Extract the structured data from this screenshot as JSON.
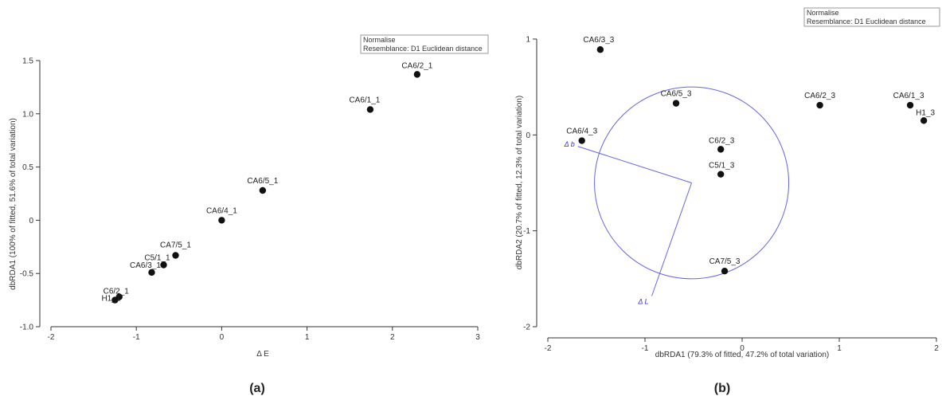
{
  "legend_lines": [
    "Normalise",
    "Resemblance: D1 Euclidean distance"
  ],
  "chart_data": [
    {
      "type": "scatter",
      "caption": "(a)",
      "xlabel": "Δ E",
      "ylabel": "dbRDA1 (100% of fitted, 51.6% of total variation)",
      "xlim": [
        -2,
        3
      ],
      "ylim": [
        -1.0,
        1.5
      ],
      "xticks": [
        -2,
        -1,
        0,
        1,
        2,
        3
      ],
      "xtick_labels": [
        "-2",
        "-1",
        "0",
        "1",
        "2",
        "3"
      ],
      "yticks": [
        -1.0,
        -0.5,
        0,
        0.5,
        1.0,
        1.5
      ],
      "ytick_labels": [
        "-1.0",
        "-0.5",
        "0",
        "0.5",
        "1.0",
        "1.5"
      ],
      "grid": false,
      "points": [
        {
          "label": "CA6/2_1",
          "x": 2.29,
          "y": 1.37
        },
        {
          "label": "CA6/1_1",
          "x": 1.74,
          "y": 1.04
        },
        {
          "label": "CA6/5_1",
          "x": 0.48,
          "y": 0.28
        },
        {
          "label": "CA6/4_1",
          "x": 0.0,
          "y": 0.0
        },
        {
          "label": "CA7/5_1",
          "x": -0.54,
          "y": -0.33
        },
        {
          "label": "C5/1_1",
          "x": -0.68,
          "y": -0.42
        },
        {
          "label": "CA6/3_1",
          "x": -0.82,
          "y": -0.49
        },
        {
          "label": "C6/2_1",
          "x": -1.2,
          "y": -0.72
        },
        {
          "label": "H1_1",
          "x": -1.25,
          "y": -0.75
        }
      ]
    },
    {
      "type": "scatter",
      "caption": "(b)",
      "xlabel": "dbRDA1 (79.3% of fitted, 47.2% of total variation)",
      "ylabel": "dbRDA2 (20.7% of fitted, 12.3% of total variation)",
      "xlim": [
        -2,
        2
      ],
      "ylim": [
        -2,
        1
      ],
      "xticks": [
        -2,
        -1,
        0,
        1,
        2
      ],
      "xtick_labels": [
        "-2",
        "-1",
        "0",
        "1",
        "2"
      ],
      "yticks": [
        -2,
        -1,
        0,
        1
      ],
      "ytick_labels": [
        "-2",
        "-1",
        "0",
        "1"
      ],
      "grid": false,
      "points": [
        {
          "label": "CA6/3_3",
          "x": -1.46,
          "y": 0.89
        },
        {
          "label": "CA6/5_3",
          "x": -0.68,
          "y": 0.33
        },
        {
          "label": "CA6/2_3",
          "x": 0.8,
          "y": 0.31
        },
        {
          "label": "CA6/1_3",
          "x": 1.73,
          "y": 0.31
        },
        {
          "label": "H1_3",
          "x": 1.87,
          "y": 0.15
        },
        {
          "label": "CA6/4_3",
          "x": -1.65,
          "y": -0.06
        },
        {
          "label": "C6/2_3",
          "x": -0.22,
          "y": -0.15
        },
        {
          "label": "C5/1_3",
          "x": -0.22,
          "y": -0.41
        },
        {
          "label": "CA7/5_3",
          "x": -0.18,
          "y": -1.42
        }
      ],
      "correlation_circle": {
        "center": [
          -0.52,
          -0.5
        ],
        "radius": 1.0,
        "color": "#6666dd"
      },
      "vectors": [
        {
          "label": "Δ b",
          "x": -1.69,
          "y": -0.12
        },
        {
          "label": "Δ L",
          "x": -0.93,
          "y": -1.68
        }
      ]
    }
  ]
}
